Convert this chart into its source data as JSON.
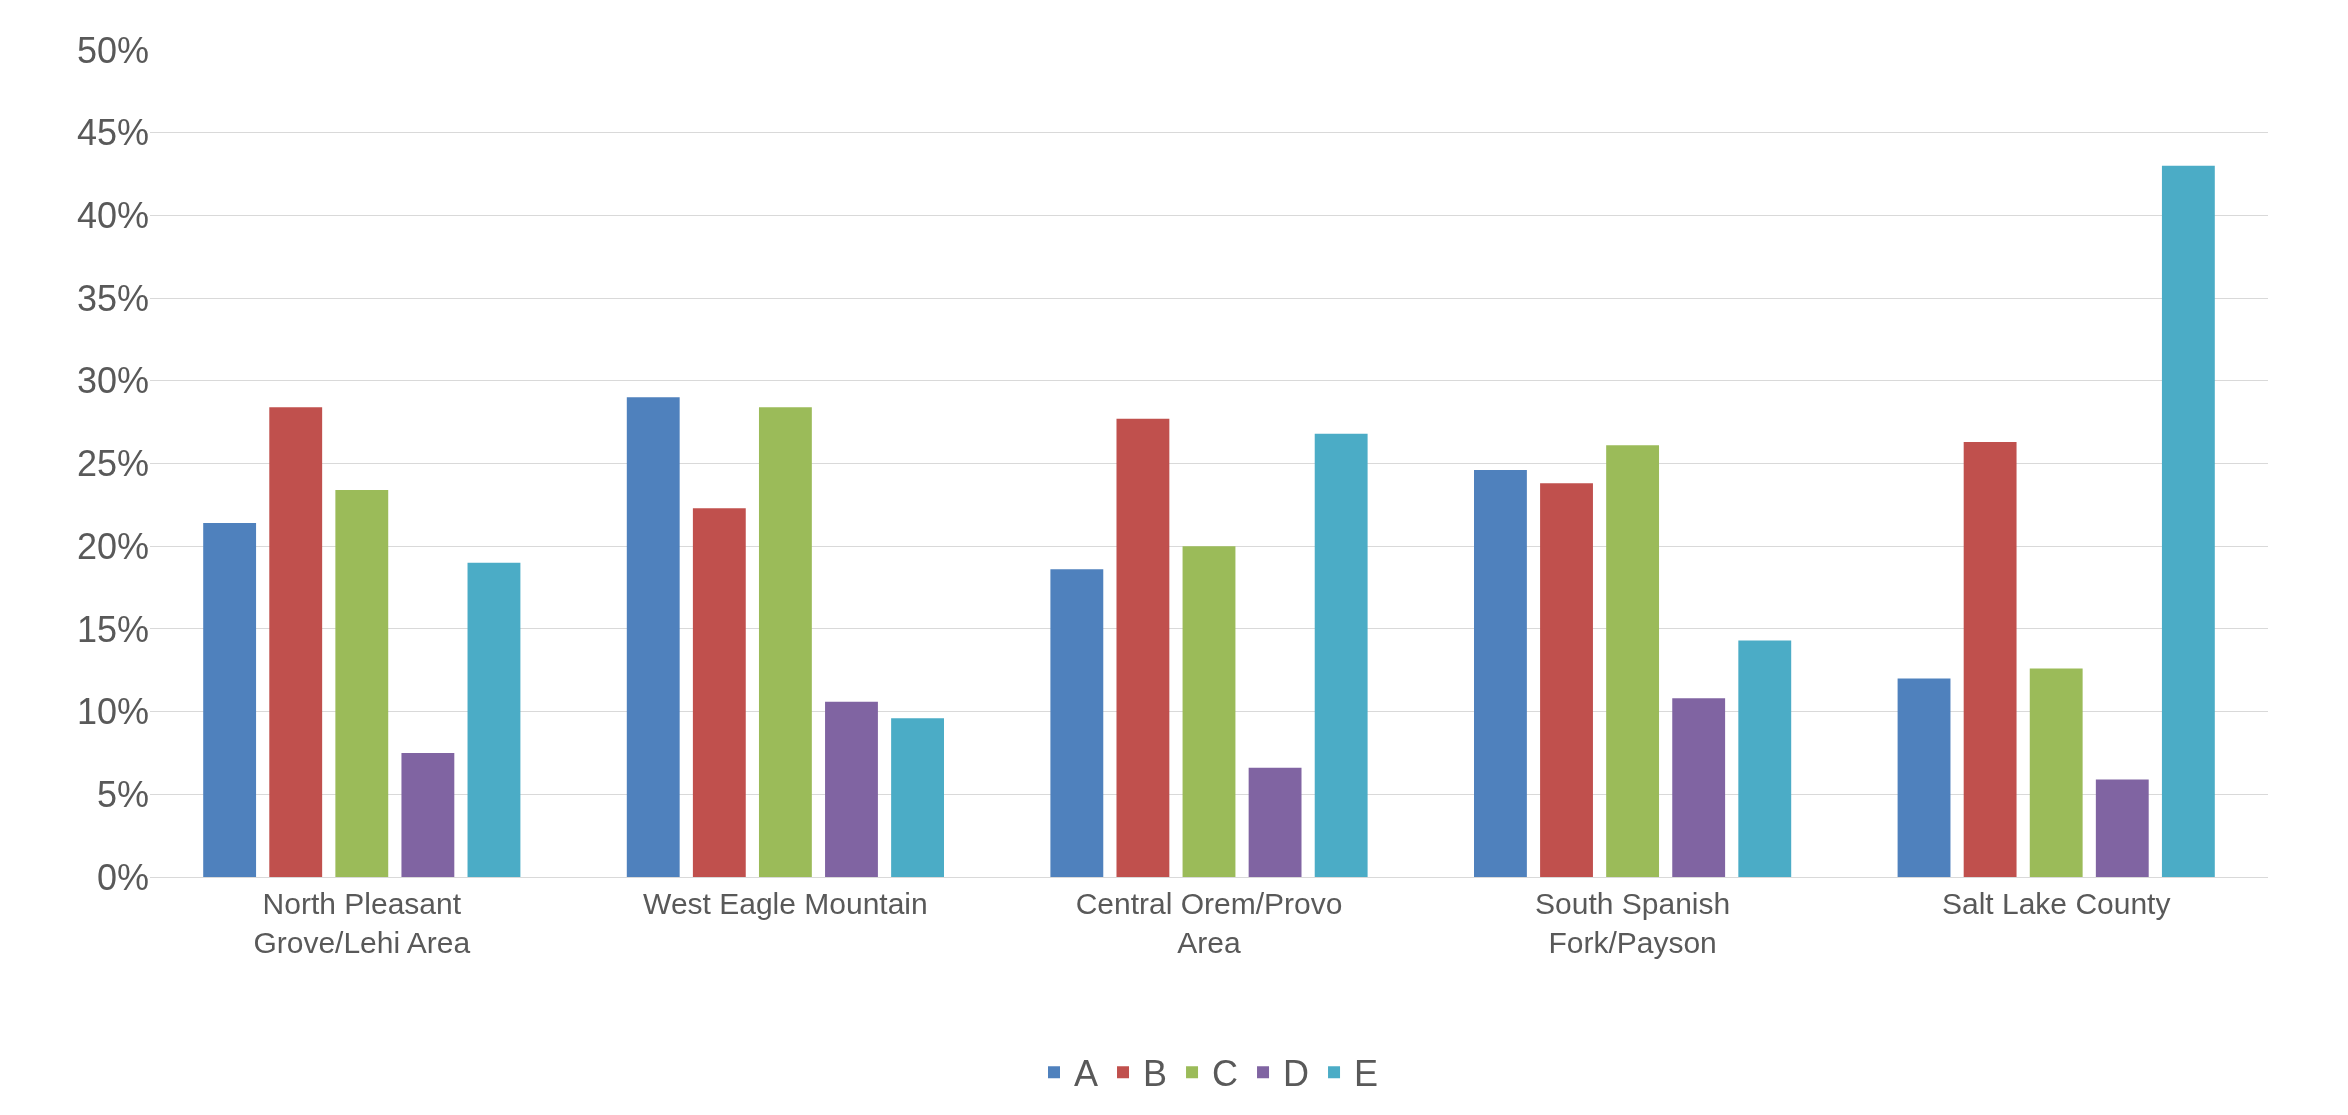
{
  "chart_data": {
    "type": "bar",
    "categories": [
      "North Pleasant\nGrove/Lehi Area",
      "West Eagle Mountain",
      "Central Orem/Provo\nArea",
      "South Spanish\nFork/Payson",
      "Salt Lake County"
    ],
    "series": [
      {
        "name": "A",
        "color": "#4f81bd",
        "values": [
          21.4,
          29.0,
          18.6,
          24.6,
          12.0
        ]
      },
      {
        "name": "B",
        "color": "#c0504d",
        "values": [
          28.4,
          22.3,
          27.7,
          23.8,
          26.3
        ]
      },
      {
        "name": "C",
        "color": "#9bbb59",
        "values": [
          23.4,
          28.4,
          20.0,
          26.1,
          12.6
        ]
      },
      {
        "name": "D",
        "color": "#8064a2",
        "values": [
          7.5,
          10.6,
          6.6,
          10.8,
          5.9
        ]
      },
      {
        "name": "E",
        "color": "#4bacc6",
        "values": [
          19.0,
          9.6,
          26.8,
          14.3,
          43.0
        ]
      }
    ],
    "ylim": [
      0,
      50
    ],
    "yticks": [
      {
        "value": 0,
        "label": "0%"
      },
      {
        "value": 5,
        "label": "5%"
      },
      {
        "value": 10,
        "label": "10%"
      },
      {
        "value": 15,
        "label": "15%"
      },
      {
        "value": 20,
        "label": "20%"
      },
      {
        "value": 25,
        "label": "25%"
      },
      {
        "value": 30,
        "label": "30%"
      },
      {
        "value": 35,
        "label": "35%"
      },
      {
        "value": 40,
        "label": "40%"
      },
      {
        "value": 45,
        "label": "45%"
      },
      {
        "value": 50,
        "label": "50%"
      }
    ],
    "grid": "y",
    "legend": "bottom"
  }
}
